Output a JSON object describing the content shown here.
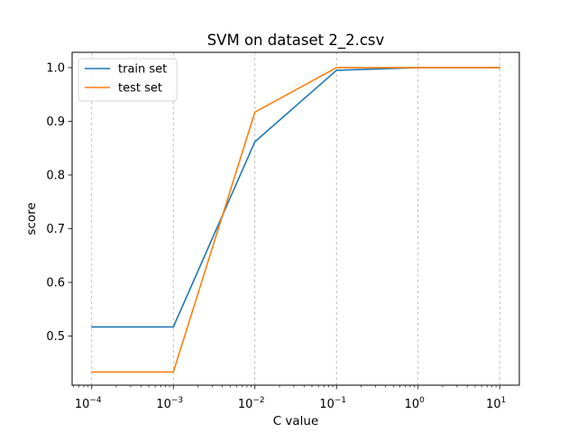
{
  "chart_data": {
    "type": "line",
    "title": "SVM on dataset 2_2.csv",
    "xlabel": "C value",
    "ylabel": "score",
    "x_scale": "log",
    "x": [
      0.0001,
      0.001,
      0.01,
      0.1,
      1,
      10
    ],
    "x_tick_labels": [
      {
        "base": "10",
        "exp": "−4"
      },
      {
        "base": "10",
        "exp": "−3"
      },
      {
        "base": "10",
        "exp": "−2"
      },
      {
        "base": "10",
        "exp": "−1"
      },
      {
        "base": "10",
        "exp": "0"
      },
      {
        "base": "10",
        "exp": "1"
      }
    ],
    "y_ticks": [
      "0.5",
      "0.6",
      "0.7",
      "0.8",
      "0.9",
      "1.0"
    ],
    "xlim": [
      5.75e-05,
      17.4
    ],
    "ylim": [
      0.4085,
      1.0285
    ],
    "grid": "x-axis dashed",
    "legend_position": "top-left",
    "series": [
      {
        "name": "train set",
        "color": "#1f77b4",
        "values": [
          0.517,
          0.517,
          0.862,
          0.995,
          1.0,
          1.0
        ]
      },
      {
        "name": "test set",
        "color": "#ff7f0e",
        "values": [
          0.433,
          0.433,
          0.917,
          1.0,
          1.0,
          1.0
        ]
      }
    ]
  }
}
